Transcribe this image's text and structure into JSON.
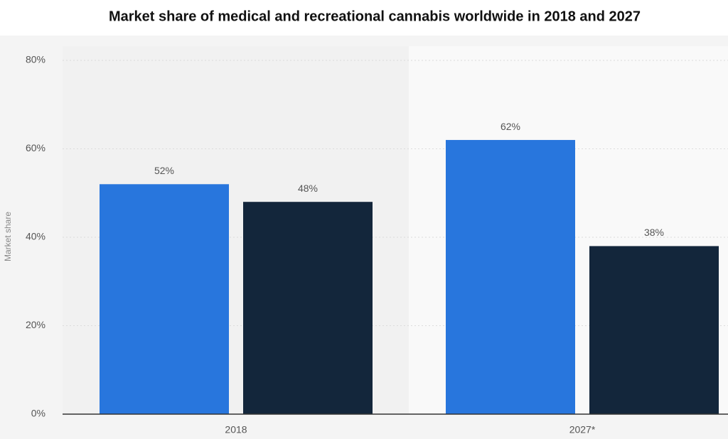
{
  "chart_data": {
    "type": "bar",
    "title": "Market share of medical and recreational cannabis worldwide in 2018 and 2027",
    "y_label": "Market share",
    "categories": [
      "2018",
      "2027*"
    ],
    "series": [
      {
        "color": "#2876dd",
        "values": [
          52,
          62
        ],
        "value_labels": [
          "52%",
          "62%"
        ]
      },
      {
        "color": "#13263b",
        "values": [
          48,
          38
        ],
        "value_labels": [
          "48%",
          "38%"
        ]
      }
    ],
    "ylim": [
      0,
      80
    ],
    "yticks": [
      {
        "value": 0,
        "label": "0%"
      },
      {
        "value": 20,
        "label": "20%"
      },
      {
        "value": 40,
        "label": "40%"
      },
      {
        "value": 60,
        "label": "60%"
      },
      {
        "value": 80,
        "label": "80%"
      }
    ],
    "grid": true
  }
}
